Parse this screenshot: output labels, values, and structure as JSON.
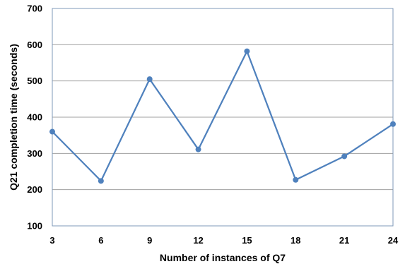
{
  "chart_data": {
    "type": "line",
    "title": "",
    "xlabel": "Number of instances of Q7",
    "ylabel": "Q21 completion time (seconds)",
    "x": [
      3,
      6,
      9,
      12,
      15,
      18,
      21,
      24
    ],
    "x_tick_labels": [
      "3",
      "6",
      "9",
      "12",
      "15",
      "18",
      "21",
      "24"
    ],
    "y_tick_labels": [
      "100",
      "200",
      "300",
      "400",
      "500",
      "600",
      "700"
    ],
    "ylim": [
      100,
      700
    ],
    "y_ticks": [
      100,
      200,
      300,
      400,
      500,
      600,
      700
    ],
    "grid": "horizontal",
    "legend": "none",
    "series": [
      {
        "values": [
          360,
          224,
          505,
          311,
          582,
          227,
          292,
          381
        ],
        "color": "#4f81bd",
        "marker": "circle"
      }
    ]
  }
}
